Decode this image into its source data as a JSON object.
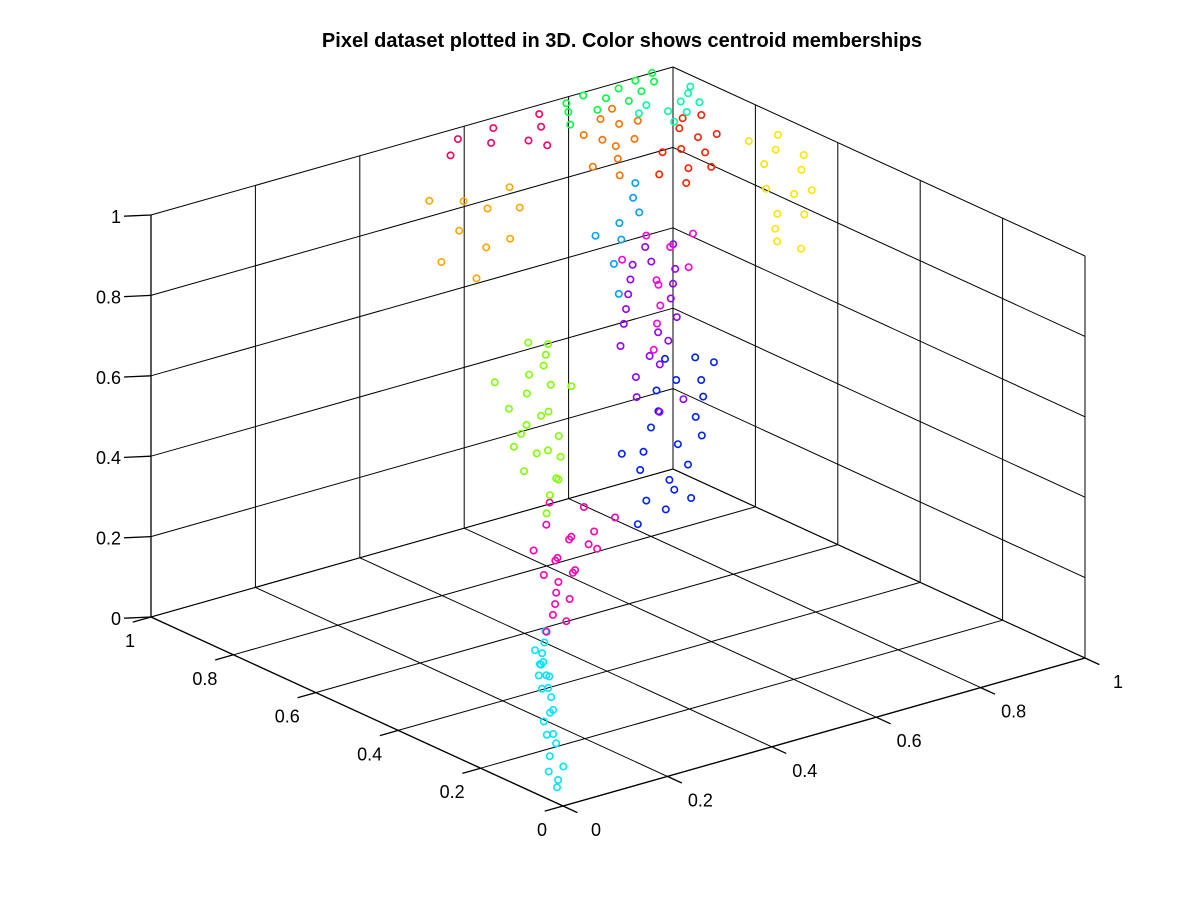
{
  "chart_data": {
    "type": "scatter",
    "title": "Pixel dataset plotted in 3D. Color shows centroid memberships",
    "xlabel": "",
    "ylabel": "",
    "zlabel": "",
    "projection": "3d",
    "xlim": [
      0,
      1
    ],
    "ylim": [
      0,
      1
    ],
    "zlim": [
      0,
      1
    ],
    "x_ticks": [
      "0",
      "0.2",
      "0.4",
      "0.6",
      "0.8",
      "1"
    ],
    "y_ticks": [
      "0",
      "0.2",
      "0.4",
      "0.6",
      "0.8",
      "1"
    ],
    "z_ticks": [
      "0",
      "0.2",
      "0.4",
      "0.6",
      "0.8",
      "1"
    ],
    "grid": true,
    "legend": "none",
    "marker": "open-circle",
    "clusters": [
      {
        "color": "#00e5ff",
        "points": [
          [
            0.02,
            0.04,
            0.02
          ],
          [
            0.03,
            0.05,
            0.03
          ],
          [
            0.02,
            0.06,
            0.05
          ],
          [
            0.04,
            0.05,
            0.06
          ],
          [
            0.03,
            0.07,
            0.08
          ],
          [
            0.05,
            0.08,
            0.1
          ],
          [
            0.04,
            0.09,
            0.12
          ],
          [
            0.06,
            0.1,
            0.11
          ],
          [
            0.05,
            0.11,
            0.14
          ],
          [
            0.07,
            0.12,
            0.15
          ],
          [
            0.06,
            0.1,
            0.17
          ],
          [
            0.08,
            0.13,
            0.18
          ],
          [
            0.07,
            0.14,
            0.2
          ],
          [
            0.09,
            0.15,
            0.19
          ],
          [
            0.08,
            0.16,
            0.22
          ],
          [
            0.1,
            0.16,
            0.21
          ],
          [
            0.09,
            0.17,
            0.24
          ],
          [
            0.1,
            0.18,
            0.23
          ],
          [
            0.11,
            0.19,
            0.25
          ],
          [
            0.12,
            0.2,
            0.22
          ],
          [
            0.11,
            0.18,
            0.2
          ],
          [
            0.13,
            0.21,
            0.26
          ],
          [
            0.12,
            0.22,
            0.24
          ],
          [
            0.14,
            0.22,
            0.28
          ]
        ]
      },
      {
        "color": "#ff00b4",
        "points": [
          [
            0.15,
            0.23,
            0.27
          ],
          [
            0.17,
            0.24,
            0.3
          ],
          [
            0.19,
            0.26,
            0.31
          ],
          [
            0.2,
            0.27,
            0.33
          ],
          [
            0.22,
            0.29,
            0.34
          ],
          [
            0.18,
            0.22,
            0.29
          ],
          [
            0.21,
            0.25,
            0.32
          ],
          [
            0.24,
            0.28,
            0.36
          ],
          [
            0.26,
            0.3,
            0.35
          ],
          [
            0.23,
            0.31,
            0.38
          ],
          [
            0.25,
            0.33,
            0.37
          ],
          [
            0.28,
            0.34,
            0.4
          ],
          [
            0.3,
            0.36,
            0.39
          ],
          [
            0.27,
            0.28,
            0.42
          ],
          [
            0.32,
            0.33,
            0.41
          ],
          [
            0.2,
            0.3,
            0.36
          ],
          [
            0.22,
            0.35,
            0.39
          ],
          [
            0.26,
            0.37,
            0.43
          ],
          [
            0.31,
            0.31,
            0.38
          ],
          [
            0.34,
            0.38,
            0.44
          ],
          [
            0.36,
            0.33,
            0.43
          ],
          [
            0.29,
            0.4,
            0.46
          ]
        ]
      },
      {
        "color": "#7fff00",
        "points": [
          [
            0.3,
            0.42,
            0.42
          ],
          [
            0.33,
            0.45,
            0.44
          ],
          [
            0.35,
            0.46,
            0.47
          ],
          [
            0.37,
            0.48,
            0.45
          ],
          [
            0.32,
            0.5,
            0.48
          ],
          [
            0.36,
            0.52,
            0.5
          ],
          [
            0.39,
            0.5,
            0.49
          ],
          [
            0.41,
            0.53,
            0.52
          ],
          [
            0.34,
            0.55,
            0.51
          ],
          [
            0.38,
            0.57,
            0.54
          ],
          [
            0.4,
            0.56,
            0.56
          ],
          [
            0.43,
            0.58,
            0.55
          ],
          [
            0.37,
            0.6,
            0.57
          ],
          [
            0.42,
            0.62,
            0.58
          ],
          [
            0.45,
            0.6,
            0.6
          ],
          [
            0.44,
            0.64,
            0.61
          ],
          [
            0.46,
            0.63,
            0.63
          ],
          [
            0.39,
            0.66,
            0.6
          ],
          [
            0.48,
            0.65,
            0.64
          ],
          [
            0.47,
            0.68,
            0.66
          ],
          [
            0.5,
            0.67,
            0.65
          ],
          [
            0.35,
            0.48,
            0.53
          ],
          [
            0.33,
            0.52,
            0.56
          ],
          [
            0.45,
            0.55,
            0.62
          ]
        ]
      },
      {
        "color": "#0020ff",
        "points": [
          [
            0.38,
            0.3,
            0.42
          ],
          [
            0.42,
            0.33,
            0.45
          ],
          [
            0.45,
            0.3,
            0.48
          ],
          [
            0.48,
            0.35,
            0.47
          ],
          [
            0.44,
            0.37,
            0.5
          ],
          [
            0.5,
            0.33,
            0.51
          ],
          [
            0.52,
            0.38,
            0.53
          ],
          [
            0.47,
            0.4,
            0.52
          ],
          [
            0.55,
            0.36,
            0.55
          ],
          [
            0.5,
            0.42,
            0.56
          ],
          [
            0.57,
            0.4,
            0.57
          ],
          [
            0.53,
            0.44,
            0.58
          ],
          [
            0.6,
            0.42,
            0.6
          ],
          [
            0.55,
            0.47,
            0.61
          ],
          [
            0.58,
            0.46,
            0.63
          ],
          [
            0.62,
            0.45,
            0.62
          ],
          [
            0.49,
            0.31,
            0.44
          ],
          [
            0.41,
            0.27,
            0.46
          ],
          [
            0.46,
            0.44,
            0.5
          ],
          [
            0.64,
            0.49,
            0.65
          ],
          [
            0.59,
            0.5,
            0.66
          ],
          [
            0.66,
            0.47,
            0.64
          ]
        ]
      },
      {
        "color": "#9400ff",
        "points": [
          [
            0.52,
            0.48,
            0.6
          ],
          [
            0.55,
            0.52,
            0.62
          ],
          [
            0.58,
            0.5,
            0.65
          ],
          [
            0.6,
            0.55,
            0.64
          ],
          [
            0.56,
            0.57,
            0.67
          ],
          [
            0.62,
            0.53,
            0.68
          ],
          [
            0.64,
            0.58,
            0.67
          ],
          [
            0.59,
            0.6,
            0.7
          ],
          [
            0.66,
            0.56,
            0.71
          ],
          [
            0.61,
            0.62,
            0.72
          ],
          [
            0.68,
            0.6,
            0.73
          ],
          [
            0.63,
            0.64,
            0.74
          ],
          [
            0.7,
            0.62,
            0.75
          ],
          [
            0.65,
            0.66,
            0.76
          ],
          [
            0.72,
            0.64,
            0.77
          ],
          [
            0.67,
            0.68,
            0.78
          ],
          [
            0.54,
            0.45,
            0.57
          ],
          [
            0.57,
            0.43,
            0.6
          ],
          [
            0.69,
            0.66,
            0.79
          ],
          [
            0.71,
            0.7,
            0.8
          ],
          [
            0.74,
            0.67,
            0.81
          ]
        ]
      },
      {
        "color": "#ff00e0",
        "points": [
          [
            0.6,
            0.54,
            0.66
          ],
          [
            0.63,
            0.57,
            0.7
          ],
          [
            0.66,
            0.6,
            0.72
          ],
          [
            0.68,
            0.63,
            0.75
          ],
          [
            0.7,
            0.66,
            0.74
          ],
          [
            0.73,
            0.62,
            0.78
          ],
          [
            0.75,
            0.69,
            0.79
          ],
          [
            0.72,
            0.71,
            0.82
          ],
          [
            0.77,
            0.66,
            0.83
          ],
          [
            0.65,
            0.68,
            0.8
          ]
        ]
      },
      {
        "color": "#00a0ff",
        "points": [
          [
            0.62,
            0.65,
            0.74
          ],
          [
            0.65,
            0.7,
            0.78
          ],
          [
            0.68,
            0.72,
            0.82
          ],
          [
            0.7,
            0.75,
            0.84
          ],
          [
            0.73,
            0.74,
            0.86
          ],
          [
            0.75,
            0.78,
            0.87
          ],
          [
            0.67,
            0.77,
            0.81
          ],
          [
            0.77,
            0.8,
            0.89
          ]
        ]
      },
      {
        "color": "#ffe400",
        "points": [
          [
            0.88,
            0.6,
            0.83
          ],
          [
            0.9,
            0.62,
            0.85
          ],
          [
            0.92,
            0.58,
            0.86
          ],
          [
            0.94,
            0.63,
            0.88
          ],
          [
            0.91,
            0.66,
            0.89
          ],
          [
            0.95,
            0.6,
            0.9
          ],
          [
            0.97,
            0.65,
            0.92
          ],
          [
            0.93,
            0.69,
            0.93
          ],
          [
            0.96,
            0.7,
            0.95
          ],
          [
            0.99,
            0.67,
            0.94
          ],
          [
            0.89,
            0.55,
            0.8
          ],
          [
            0.86,
            0.57,
            0.82
          ],
          [
            0.98,
            0.72,
            0.97
          ],
          [
            0.94,
            0.74,
            0.96
          ]
        ]
      },
      {
        "color": "#ff2000",
        "points": [
          [
            0.82,
            0.74,
            0.9
          ],
          [
            0.84,
            0.76,
            0.92
          ],
          [
            0.86,
            0.73,
            0.93
          ],
          [
            0.88,
            0.77,
            0.94
          ],
          [
            0.85,
            0.79,
            0.95
          ],
          [
            0.89,
            0.8,
            0.96
          ],
          [
            0.91,
            0.78,
            0.97
          ],
          [
            0.87,
            0.82,
            0.98
          ],
          [
            0.92,
            0.83,
            0.99
          ],
          [
            0.9,
            0.85,
            0.98
          ],
          [
            0.8,
            0.78,
            0.91
          ],
          [
            0.83,
            0.81,
            0.94
          ]
        ]
      },
      {
        "color": "#ff7000",
        "points": [
          [
            0.74,
            0.8,
            0.92
          ],
          [
            0.76,
            0.83,
            0.94
          ],
          [
            0.78,
            0.86,
            0.95
          ],
          [
            0.8,
            0.84,
            0.97
          ],
          [
            0.77,
            0.88,
            0.96
          ],
          [
            0.81,
            0.89,
            0.98
          ],
          [
            0.79,
            0.91,
            0.99
          ],
          [
            0.83,
            0.87,
            0.99
          ],
          [
            0.72,
            0.84,
            0.93
          ],
          [
            0.75,
            0.9,
            0.97
          ],
          [
            0.82,
            0.92,
            1.0
          ]
        ]
      },
      {
        "color": "#ffa500",
        "points": [
          [
            0.45,
            0.78,
            0.78
          ],
          [
            0.5,
            0.82,
            0.82
          ],
          [
            0.48,
            0.86,
            0.85
          ],
          [
            0.53,
            0.8,
            0.84
          ],
          [
            0.55,
            0.88,
            0.87
          ],
          [
            0.43,
            0.84,
            0.8
          ],
          [
            0.58,
            0.84,
            0.88
          ],
          [
            0.52,
            0.9,
            0.89
          ],
          [
            0.47,
            0.92,
            0.9
          ],
          [
            0.6,
            0.89,
            0.9
          ]
        ]
      },
      {
        "color": "#ff0060",
        "points": [
          [
            0.62,
            0.96,
            0.97
          ],
          [
            0.66,
            0.92,
            0.98
          ],
          [
            0.64,
            0.98,
            0.99
          ],
          [
            0.7,
            0.94,
            0.99
          ],
          [
            0.68,
            0.9,
            0.97
          ],
          [
            0.55,
            0.97,
            0.96
          ],
          [
            0.58,
            0.99,
            0.98
          ],
          [
            0.72,
            0.97,
            1.0
          ]
        ]
      },
      {
        "color": "#00ff40",
        "points": [
          [
            0.76,
            0.95,
            1.0
          ],
          [
            0.8,
            0.93,
            1.0
          ],
          [
            0.78,
            0.98,
            1.0
          ],
          [
            0.84,
            0.96,
            1.0
          ],
          [
            0.82,
            0.99,
            1.0
          ],
          [
            0.74,
            0.92,
            0.99
          ],
          [
            0.86,
            0.93,
            1.0
          ],
          [
            0.88,
            0.98,
            1.0
          ],
          [
            0.9,
            0.95,
            1.0
          ],
          [
            0.92,
            0.99,
            1.0
          ],
          [
            0.94,
            0.97,
            1.0
          ],
          [
            0.96,
            1.0,
            1.0
          ]
        ]
      },
      {
        "color": "#00ffa0",
        "points": [
          [
            0.86,
            0.82,
            1.0
          ],
          [
            0.88,
            0.86,
            1.0
          ],
          [
            0.9,
            0.84,
            1.0
          ],
          [
            0.92,
            0.88,
            1.0
          ],
          [
            0.94,
            0.86,
            1.0
          ],
          [
            0.87,
            0.9,
            1.0
          ],
          [
            0.95,
            0.9,
            1.0
          ],
          [
            0.97,
            0.92,
            1.0
          ],
          [
            0.84,
            0.88,
            1.0
          ]
        ]
      }
    ]
  }
}
